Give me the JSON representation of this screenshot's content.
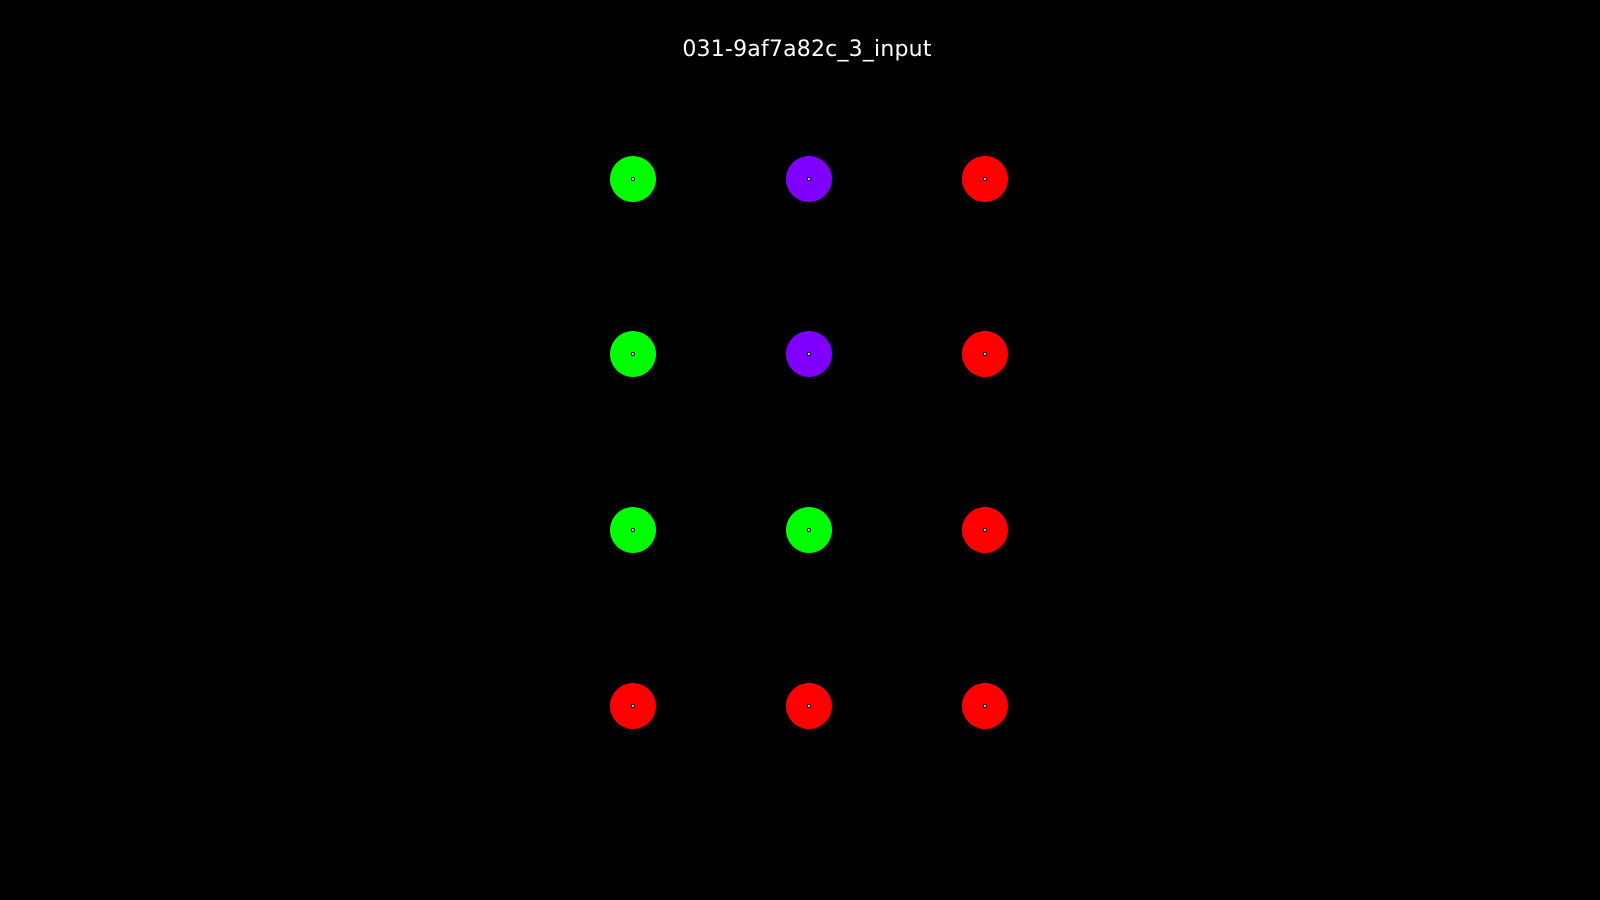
{
  "title": "031-9af7a82c_3_input",
  "grid": {
    "rows": [
      [
        "green",
        "purple",
        "red"
      ],
      [
        "green",
        "purple",
        "red"
      ],
      [
        "green",
        "green",
        "red"
      ],
      [
        "red",
        "red",
        "red"
      ]
    ]
  },
  "colors": {
    "green": "#00ff00",
    "purple": "#8000ff",
    "red": "#ff0000",
    "center": "#ffffff",
    "background": "#000000"
  }
}
